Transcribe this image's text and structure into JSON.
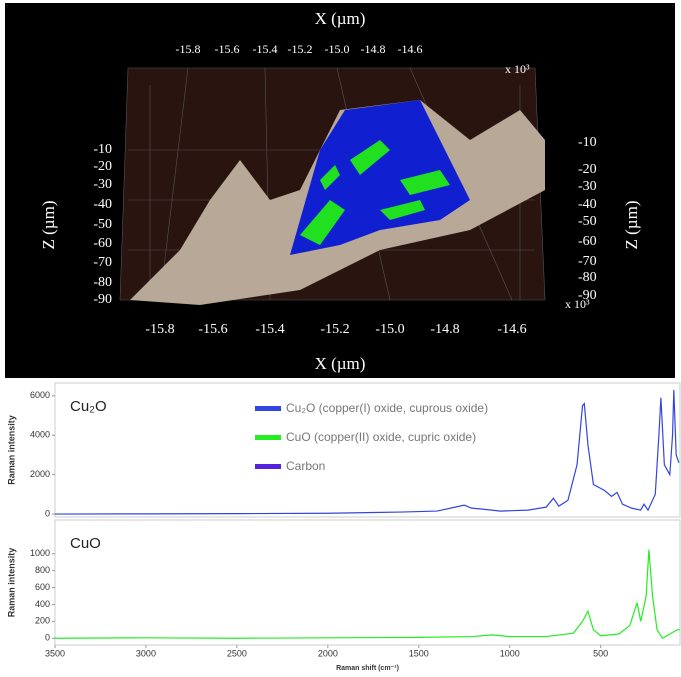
{
  "surface_plot": {
    "x_label_top": "X (µm)",
    "x_label_bottom": "X (µm)",
    "z_label_left": "Z (µm)",
    "z_label_right": "Z (µm)",
    "x_ticks_top": [
      "-15.8",
      "-15.6",
      "-15.4",
      "-15.2",
      "-15.0",
      "-14.8",
      "-14.6"
    ],
    "x_ticks_bottom": [
      "-15.8",
      "-15.6",
      "-15.4",
      "-15.2",
      "-15.0",
      "-14.8",
      "-14.6"
    ],
    "z_ticks_left": [
      "-10",
      "-20",
      "-30",
      "-40",
      "-50",
      "-60",
      "-70",
      "-80",
      "-90"
    ],
    "z_ticks_right": [
      "-10",
      "-20",
      "-30",
      "-40",
      "-50",
      "-60",
      "-70",
      "-80",
      "-90"
    ],
    "scale_top": "x 10³",
    "scale_bottom": "x 10³"
  },
  "chart_data": [
    {
      "type": "line",
      "ylabel": "Raman intensity",
      "xlim": [
        3500,
        64
      ],
      "ylim": [
        -150,
        6650
      ],
      "yticks": [
        0,
        2000,
        4000,
        6000
      ],
      "legend": [
        {
          "label": "Cu₂O (copper(I) oxide, cuprous oxide)",
          "color": "#3344e0"
        },
        {
          "label": "CuO (copper(II) oxide, cupric oxide)",
          "color": "#22ee22"
        },
        {
          "label": "Carbon",
          "color": "#5522dd"
        }
      ],
      "x": [
        3500,
        3000,
        2500,
        2000,
        1600,
        1400,
        1300,
        1250,
        1210,
        1150,
        1050,
        900,
        800,
        760,
        730,
        680,
        630,
        600,
        590,
        570,
        540,
        480,
        440,
        410,
        380,
        330,
        280,
        262,
        240,
        200,
        180,
        169,
        150,
        120,
        105,
        98,
        85,
        70
      ],
      "series": [
        {
          "name": "Cu₂O",
          "color": "#3344e0",
          "values": [
            0,
            10,
            20,
            40,
            100,
            150,
            350,
            450,
            300,
            250,
            150,
            200,
            350,
            800,
            400,
            700,
            2500,
            5500,
            5600,
            3500,
            1500,
            1200,
            900,
            1100,
            500,
            300,
            200,
            500,
            200,
            1000,
            4000,
            5900,
            2500,
            2000,
            4000,
            6300,
            3000,
            2600
          ]
        }
      ]
    },
    {
      "type": "line",
      "ylabel": "Raman intensity",
      "xlabel": "Raman shift (cm⁻¹)",
      "xlim": [
        3500,
        64
      ],
      "ylim": [
        -80,
        1400
      ],
      "yticks": [
        0,
        200,
        400,
        600,
        800,
        1000
      ],
      "xticks": [
        3500,
        3000,
        2500,
        2000,
        1500,
        1000,
        500
      ],
      "x": [
        3500,
        3000,
        2500,
        2000,
        1500,
        1200,
        1100,
        1000,
        800,
        650,
        600,
        570,
        540,
        500,
        400,
        340,
        300,
        280,
        250,
        235,
        215,
        190,
        160,
        120,
        80,
        64
      ],
      "series": [
        {
          "name": "CuO",
          "color": "#22ee22",
          "values": [
            0,
            5,
            0,
            5,
            10,
            20,
            40,
            20,
            20,
            60,
            200,
            320,
            100,
            30,
            50,
            150,
            420,
            200,
            500,
            1050,
            500,
            100,
            0,
            50,
            100,
            100
          ]
        }
      ]
    }
  ]
}
